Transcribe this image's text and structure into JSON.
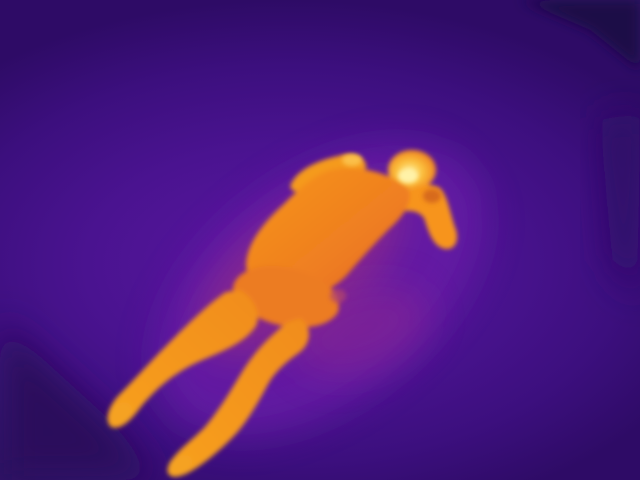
{
  "scene": {
    "palette": {
      "background_cold": "#2e0b66",
      "background_mid": "#4a1390",
      "floor_warm": "#6a1aa8",
      "residual_heat": "#b8387a",
      "body_warm": "#e8641e",
      "body_hot": "#f79a1a",
      "body_hottest": "#fde37a"
    },
    "subject": "person-lying-on-floor"
  }
}
